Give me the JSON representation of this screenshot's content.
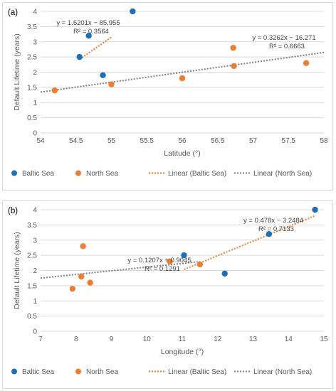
{
  "chart_data": [
    {
      "panel_label": "(a)",
      "type": "scatter",
      "xlabel": "Latitude (°)",
      "ylabel": "Default Lifetime (years)",
      "xlim": [
        54,
        58
      ],
      "ylim": [
        0,
        4
      ],
      "x_ticks": [
        "54",
        "54.5",
        "55",
        "55.5",
        "56",
        "56.5",
        "57",
        "57.5",
        "58"
      ],
      "y_ticks": [
        "0",
        "0.5",
        "1",
        "1.5",
        "2",
        "2.5",
        "3",
        "3.5",
        "4"
      ],
      "grid": "horizontal",
      "legend_position": "bottom",
      "series": [
        {
          "name": "Baltic Sea",
          "color": "#1f6fb5",
          "points": [
            [
              54.55,
              2.5
            ],
            [
              54.68,
              3.2
            ],
            [
              54.88,
              1.9
            ],
            [
              55.3,
              4.0
            ]
          ]
        },
        {
          "name": "North Sea",
          "color": "#ed7d31",
          "points": [
            [
              54.2,
              1.4
            ],
            [
              55.0,
              1.6
            ],
            [
              56.0,
              1.8
            ],
            [
              56.72,
              2.8
            ],
            [
              56.73,
              2.2
            ],
            [
              57.75,
              2.3
            ]
          ]
        }
      ],
      "trendlines": [
        {
          "name": "Linear (Baltic Sea)",
          "color": "#ed7d31",
          "style": "dotted",
          "slope": 1.6201,
          "intercept": -85.955,
          "x_range": [
            54.55,
            55.0
          ],
          "equation": "y = 1.6201x − 85.955",
          "r2": "R² = 0.3564"
        },
        {
          "name": "Linear (North Sea)",
          "color": "#7f7f7f",
          "style": "dotted",
          "slope": 0.3262,
          "intercept": -16.271,
          "x_range": [
            54.0,
            58.0
          ],
          "equation": "y = 0.3262x − 16.271",
          "r2": "R² = 0.6663"
        }
      ]
    },
    {
      "panel_label": "(b)",
      "type": "scatter",
      "xlabel": "Longitude (°)",
      "ylabel": "Default Lifetime (years)",
      "xlim": [
        7,
        15
      ],
      "ylim": [
        0,
        4
      ],
      "x_ticks": [
        "7",
        "8",
        "9",
        "10",
        "11",
        "12",
        "13",
        "14",
        "15"
      ],
      "y_ticks": [
        "0",
        "0.5",
        "1",
        "1.5",
        "2",
        "2.5",
        "3",
        "3.5",
        "4"
      ],
      "grid": "horizontal",
      "legend_position": "bottom",
      "series": [
        {
          "name": "Baltic Sea",
          "color": "#1f6fb5",
          "points": [
            [
              11.05,
              2.5
            ],
            [
              12.2,
              1.9
            ],
            [
              13.45,
              3.2
            ],
            [
              14.75,
              4.0
            ]
          ]
        },
        {
          "name": "North Sea",
          "color": "#ed7d31",
          "points": [
            [
              7.9,
              1.4
            ],
            [
              8.15,
              1.8
            ],
            [
              8.2,
              2.8
            ],
            [
              8.4,
              1.6
            ],
            [
              10.65,
              2.3
            ],
            [
              11.5,
              2.2
            ]
          ]
        }
      ],
      "trendlines": [
        {
          "name": "Linear (Baltic Sea)",
          "color": "#ed7d31",
          "style": "dotted",
          "slope": 0.478,
          "intercept": -3.2484,
          "x_range": [
            11.05,
            14.75
          ],
          "equation": "y = 0.478x − 3.2484",
          "r2": "R² = 0.7133"
        },
        {
          "name": "Linear (North Sea)",
          "color": "#7f7f7f",
          "style": "dotted",
          "slope": 0.1207,
          "intercept": 0.9045,
          "x_range": [
            7.0,
            11.5
          ],
          "equation": "y = 0.1207x + 0.9045",
          "r2": "R² = 0.1291"
        }
      ]
    }
  ]
}
